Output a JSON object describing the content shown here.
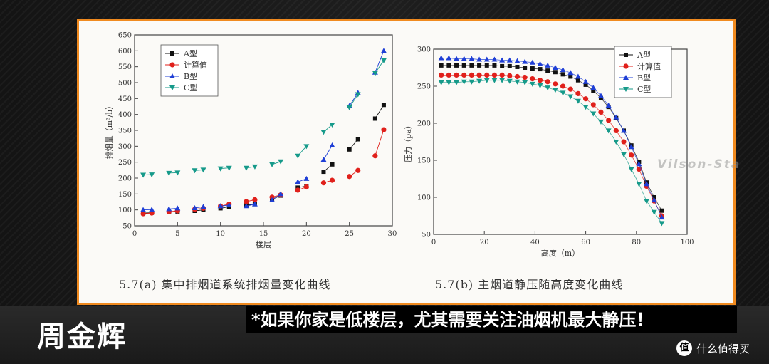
{
  "chart_data": [
    {
      "type": "scatter",
      "caption": "5.7(a)  集中排烟道系统排烟量变化曲线",
      "xlabel": "楼层",
      "ylabel": "排烟量（m³/h）",
      "xlim": [
        0,
        30
      ],
      "ylim": [
        50,
        650
      ],
      "xticks": [
        0,
        5,
        10,
        15,
        20,
        25,
        30
      ],
      "yticks": [
        50,
        100,
        150,
        200,
        250,
        300,
        350,
        400,
        450,
        500,
        550,
        600,
        650
      ],
      "legend_position": "top-left",
      "series": [
        {
          "name": "A型",
          "marker": "square",
          "color": "#111111",
          "x": [
            1,
            2,
            4,
            5,
            7,
            8,
            10,
            11,
            13,
            14,
            16,
            17,
            19,
            20,
            22,
            23,
            25,
            26,
            28,
            29
          ],
          "y": [
            90,
            91,
            93,
            95,
            97,
            100,
            105,
            110,
            115,
            118,
            133,
            145,
            170,
            175,
            220,
            243,
            290,
            322,
            387,
            430
          ]
        },
        {
          "name": "计算值",
          "marker": "circle",
          "color": "#e0201b",
          "x": [
            1,
            2,
            4,
            5,
            7,
            8,
            10,
            11,
            13,
            14,
            16,
            17,
            19,
            20,
            22,
            23,
            25,
            26,
            28,
            29
          ],
          "y": [
            88,
            90,
            94,
            97,
            102,
            105,
            112,
            118,
            126,
            132,
            140,
            147,
            162,
            172,
            185,
            193,
            205,
            224,
            270,
            352
          ]
        },
        {
          "name": "B型",
          "marker": "triangle-up",
          "color": "#1f3fd6",
          "x": [
            1,
            2,
            4,
            5,
            7,
            8,
            10,
            11,
            13,
            14,
            16,
            17,
            19,
            20,
            22,
            23,
            25,
            26,
            28,
            29
          ],
          "y": [
            100,
            101,
            103,
            105,
            106,
            110,
            112,
            115,
            112,
            118,
            131,
            150,
            188,
            198,
            258,
            303,
            427,
            468,
            532,
            600
          ]
        },
        {
          "name": "C型",
          "marker": "triangle-down",
          "color": "#169a8a",
          "x": [
            1,
            2,
            4,
            5,
            7,
            8,
            10,
            11,
            13,
            14,
            16,
            17,
            19,
            20,
            22,
            23,
            25,
            26,
            28,
            29
          ],
          "y": [
            210,
            211,
            216,
            217,
            224,
            226,
            230,
            232,
            232,
            236,
            243,
            252,
            270,
            300,
            345,
            368,
            422,
            463,
            530,
            570
          ]
        }
      ]
    },
    {
      "type": "scatter",
      "caption": "5.7(b)  主烟道静压随高度变化曲线",
      "xlabel": "高度（m）",
      "ylabel": "压力（pa）",
      "xlim": [
        0,
        100
      ],
      "ylim": [
        50,
        300
      ],
      "xticks": [
        0,
        20,
        40,
        60,
        80,
        100
      ],
      "yticks": [
        50,
        100,
        150,
        200,
        250,
        300
      ],
      "legend_position": "top-right",
      "series": [
        {
          "name": "A型",
          "marker": "square",
          "color": "#111111",
          "x": [
            3,
            6,
            9,
            12,
            15,
            18,
            21,
            24,
            27,
            30,
            33,
            36,
            39,
            42,
            45,
            48,
            51,
            54,
            57,
            60,
            63,
            66,
            69,
            72,
            75,
            78,
            81,
            84,
            87,
            90
          ],
          "y": [
            278,
            278,
            278,
            278,
            278,
            278,
            278,
            278,
            277,
            277,
            276,
            275,
            274,
            273,
            271,
            269,
            266,
            263,
            258,
            252,
            244,
            234,
            222,
            207,
            190,
            170,
            148,
            120,
            100,
            82
          ]
        },
        {
          "name": "计算值",
          "marker": "circle",
          "color": "#e0201b",
          "x": [
            3,
            6,
            9,
            12,
            15,
            18,
            21,
            24,
            27,
            30,
            33,
            36,
            39,
            42,
            45,
            48,
            51,
            54,
            57,
            60,
            63,
            66,
            69,
            72,
            75,
            78,
            81,
            84,
            87,
            90
          ],
          "y": [
            265,
            265,
            265,
            265,
            265,
            265,
            265,
            265,
            265,
            264,
            263,
            262,
            260,
            258,
            256,
            253,
            250,
            246,
            240,
            233,
            225,
            215,
            204,
            190,
            175,
            157,
            138,
            115,
            95,
            75
          ]
        },
        {
          "name": "B型",
          "marker": "triangle-up",
          "color": "#1f3fd6",
          "x": [
            3,
            6,
            9,
            12,
            15,
            18,
            21,
            24,
            27,
            30,
            33,
            36,
            39,
            42,
            45,
            48,
            51,
            54,
            57,
            60,
            63,
            66,
            69,
            72,
            75,
            78,
            81,
            84,
            87,
            90
          ],
          "y": [
            288,
            288,
            287,
            287,
            287,
            286,
            286,
            286,
            285,
            285,
            284,
            283,
            282,
            280,
            278,
            275,
            272,
            268,
            263,
            256,
            248,
            237,
            224,
            208,
            190,
            168,
            145,
            118,
            96,
            73
          ]
        },
        {
          "name": "C型",
          "marker": "triangle-down",
          "color": "#169a8a",
          "x": [
            3,
            6,
            9,
            12,
            15,
            18,
            21,
            24,
            27,
            30,
            33,
            36,
            39,
            42,
            45,
            48,
            51,
            54,
            57,
            60,
            63,
            66,
            69,
            72,
            75,
            78,
            81,
            84,
            87,
            90
          ],
          "y": [
            255,
            255,
            255,
            256,
            256,
            257,
            258,
            258,
            258,
            257,
            256,
            255,
            253,
            251,
            248,
            245,
            241,
            236,
            230,
            222,
            213,
            202,
            190,
            175,
            158,
            138,
            118,
            95,
            80,
            65
          ]
        }
      ]
    }
  ],
  "subtitle": "*如果你家是低楼层，尤其需要关注油烟机最大静压！",
  "name_tag": "周金辉",
  "watermark": "Vilson-Sta",
  "brand": {
    "icon": "值",
    "label": "什么值得买"
  }
}
